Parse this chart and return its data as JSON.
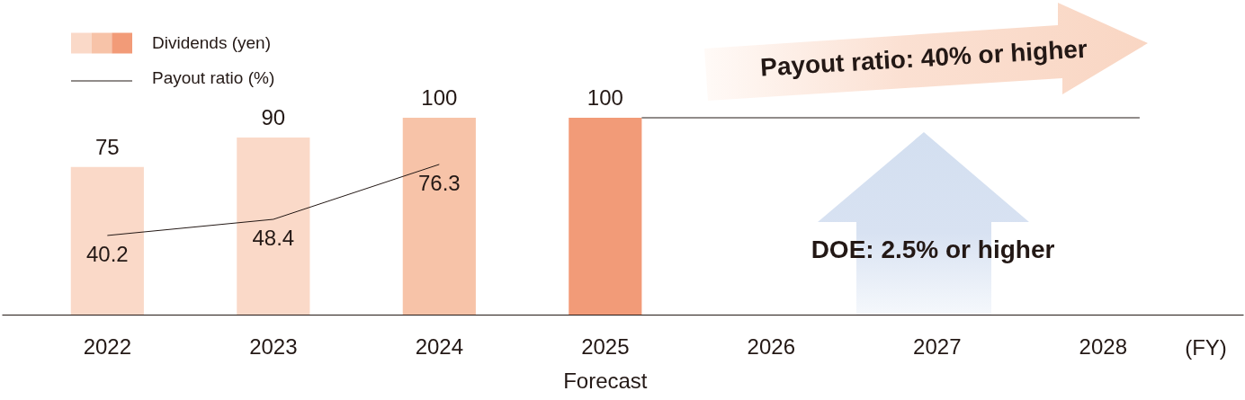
{
  "chart_data": {
    "type": "bar",
    "categories": [
      "2022",
      "2023",
      "2024",
      "2025",
      "2026",
      "2027",
      "2028"
    ],
    "xlabel": "(FY)",
    "series": [
      {
        "name": "Dividends (yen)",
        "type": "bar",
        "colors": [
          "#fad9c8",
          "#fad9c8",
          "#f7c3a8",
          "#f29b78",
          null,
          null,
          null
        ],
        "values": [
          75,
          90,
          100,
          100,
          null,
          null,
          null
        ]
      },
      {
        "name": "Payout ratio (%)",
        "type": "line",
        "color": "#231815",
        "values": [
          40.2,
          48.4,
          76.3,
          null,
          null,
          null,
          null
        ]
      }
    ],
    "data_labels": true,
    "legend": "top left",
    "ref_lines": [
      {
        "axis": "y",
        "value": 100,
        "color": "#231815"
      }
    ],
    "annotations": [
      "Forecast",
      "Payout ratio: 40% or higher",
      "DOE: 2.5% or higher"
    ]
  }
}
